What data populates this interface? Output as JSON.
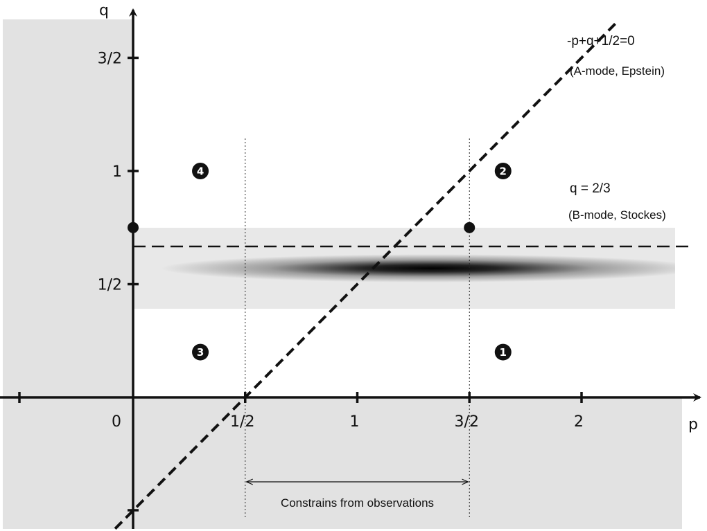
{
  "axes": {
    "x_label": "p",
    "y_label": "q",
    "x_ticks": [
      {
        "value": 0,
        "label": "0"
      },
      {
        "value": 0.5,
        "label": "1/2"
      },
      {
        "value": 1,
        "label": "1"
      },
      {
        "value": 1.5,
        "label": "3/2"
      },
      {
        "value": 2,
        "label": "2"
      }
    ],
    "y_ticks": [
      {
        "value": 0.5,
        "label": "1/2"
      },
      {
        "value": 1,
        "label": "1"
      },
      {
        "value": 1.5,
        "label": "3/2"
      }
    ]
  },
  "lines": {
    "a_mode": {
      "equation": "-p+q+1/2=0",
      "note": "(A-mode, Epstein)"
    },
    "b_mode": {
      "equation": "q = 2/3",
      "note": "(B-mode, Stockes)"
    }
  },
  "regions": [
    {
      "number": "1",
      "p": 1.65,
      "q": 0.2
    },
    {
      "number": "2",
      "p": 1.65,
      "q": 1.0
    },
    {
      "number": "3",
      "p": 0.3,
      "q": 0.2
    },
    {
      "number": "4",
      "p": 0.3,
      "q": 1.0
    }
  ],
  "points": [
    {
      "p": 0,
      "q": 0.75
    },
    {
      "p": 1.5,
      "q": 0.75
    }
  ],
  "constraint": {
    "label": "Constrains from observations",
    "p_min": 0.5,
    "p_max": 1.5
  },
  "colors": {
    "shading": "#e2e2e2",
    "ink": "#111111",
    "band_peak": "#000000"
  }
}
